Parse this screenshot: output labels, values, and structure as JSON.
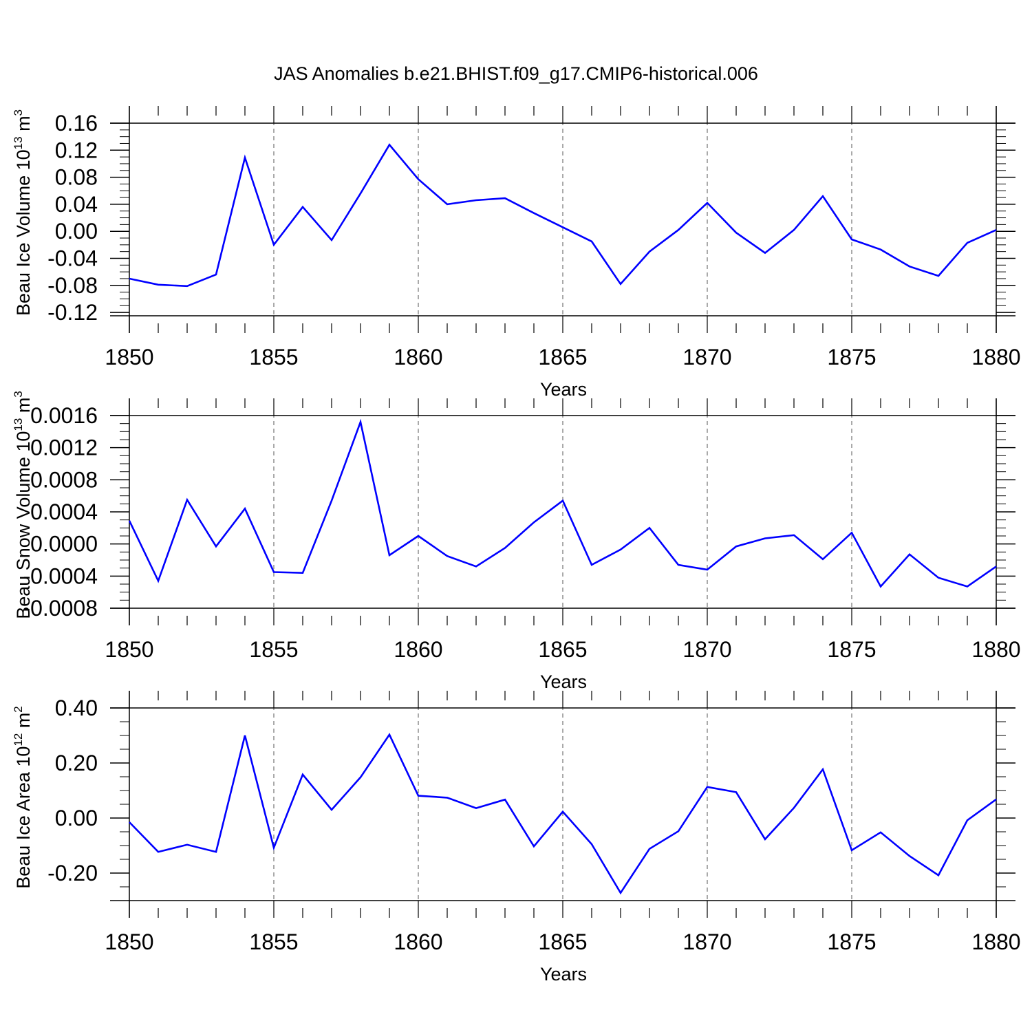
{
  "title": "JAS Anomalies b.e21.BHIST.f09_g17.CMIP6-historical.006",
  "chart_data": [
    {
      "type": "line",
      "ylabel": "Beau Ice Volume 10",
      "ylabel_sup": "13",
      "ylabel_unit": " m",
      "ylabel_unit_sup": "3",
      "xlabel": "Years",
      "xlim": [
        1850,
        1880
      ],
      "ylim": [
        -0.125,
        0.16
      ],
      "yticks": [
        -0.12,
        -0.08,
        -0.04,
        0.0,
        0.04,
        0.08,
        0.12,
        0.16
      ],
      "ytick_labels": [
        "-0.12",
        "-0.08",
        "-0.04",
        "0.00",
        "0.04",
        "0.08",
        "0.12",
        "0.16"
      ],
      "xticks": [
        1850,
        1855,
        1860,
        1865,
        1870,
        1875,
        1880
      ],
      "xtick_labels": [
        "1850",
        "1855",
        "1860",
        "1865",
        "1870",
        "1875",
        "1880"
      ],
      "x": [
        1850,
        1851,
        1852,
        1853,
        1854,
        1855,
        1856,
        1857,
        1858,
        1859,
        1860,
        1861,
        1862,
        1863,
        1864,
        1865,
        1866,
        1867,
        1868,
        1869,
        1870,
        1871,
        1872,
        1873,
        1874,
        1875,
        1876,
        1877,
        1878,
        1879,
        1880
      ],
      "series": [
        {
          "values": [
            -0.07,
            -0.079,
            -0.081,
            -0.064,
            0.109,
            -0.02,
            0.036,
            -0.013,
            0.056,
            0.128,
            0.077,
            0.04,
            0.046,
            0.049,
            0.027,
            0.006,
            -0.015,
            -0.078,
            -0.03,
            0.002,
            0.042,
            -0.002,
            -0.032,
            0.002,
            0.052,
            -0.012,
            -0.027,
            -0.052,
            -0.066,
            -0.017,
            0.002
          ]
        }
      ],
      "line_color": "#0000ff"
    },
    {
      "type": "line",
      "ylabel": "Beau Snow Volume 10",
      "ylabel_sup": "13",
      "ylabel_unit": " m",
      "ylabel_unit_sup": "3",
      "xlabel": "Years",
      "xlim": [
        1850,
        1880
      ],
      "ylim": [
        -0.0008,
        0.0016
      ],
      "yticks": [
        -0.0008,
        -0.0004,
        0.0,
        0.0004,
        0.0008,
        0.0012,
        0.0016
      ],
      "ytick_labels": [
        "-0.0008",
        "-0.0004",
        "0.0000",
        "0.0004",
        "0.0008",
        "0.0012",
        "0.0016"
      ],
      "xticks": [
        1850,
        1855,
        1860,
        1865,
        1870,
        1875,
        1880
      ],
      "xtick_labels": [
        "1850",
        "1855",
        "1860",
        "1865",
        "1870",
        "1875",
        "1880"
      ],
      "x": [
        1850,
        1851,
        1852,
        1853,
        1854,
        1855,
        1856,
        1857,
        1858,
        1859,
        1860,
        1861,
        1862,
        1863,
        1864,
        1865,
        1866,
        1867,
        1868,
        1869,
        1870,
        1871,
        1872,
        1873,
        1874,
        1875,
        1876,
        1877,
        1878,
        1879,
        1880
      ],
      "series": [
        {
          "values": [
            0.00029,
            -0.00046,
            0.00055,
            -3e-05,
            0.00044,
            -0.00035,
            -0.00036,
            0.00054,
            0.00152,
            -0.00014,
            0.0001,
            -0.00015,
            -0.00028,
            -5e-05,
            0.00027,
            0.00054,
            -0.00026,
            -7e-05,
            0.0002,
            -0.00026,
            -0.00032,
            -3e-05,
            7e-05,
            0.00011,
            -0.00019,
            0.00014,
            -0.00053,
            -0.00013,
            -0.00042,
            -0.00053,
            -0.00028
          ]
        }
      ],
      "line_color": "#0000ff"
    },
    {
      "type": "line",
      "ylabel": "Beau Ice Area 10",
      "ylabel_sup": "12",
      "ylabel_unit": " m",
      "ylabel_unit_sup": "2",
      "xlabel": "Years",
      "xlim": [
        1850,
        1880
      ],
      "ylim": [
        -0.3,
        0.4
      ],
      "yticks": [
        -0.2,
        0.0,
        0.2,
        0.4
      ],
      "ytick_labels": [
        "-0.20",
        "0.00",
        "0.20",
        "0.40"
      ],
      "xticks": [
        1850,
        1855,
        1860,
        1865,
        1870,
        1875,
        1880
      ],
      "xtick_labels": [
        "1850",
        "1855",
        "1860",
        "1865",
        "1870",
        "1875",
        "1880"
      ],
      "x": [
        1850,
        1851,
        1852,
        1853,
        1854,
        1855,
        1856,
        1857,
        1858,
        1859,
        1860,
        1861,
        1862,
        1863,
        1864,
        1865,
        1866,
        1867,
        1868,
        1869,
        1870,
        1871,
        1872,
        1873,
        1874,
        1875,
        1876,
        1877,
        1878,
        1879,
        1880
      ],
      "series": [
        {
          "values": [
            -0.015,
            -0.123,
            -0.097,
            -0.123,
            0.3,
            -0.108,
            0.158,
            0.03,
            0.148,
            0.303,
            0.081,
            0.074,
            0.036,
            0.067,
            -0.103,
            0.023,
            -0.095,
            -0.272,
            -0.112,
            -0.048,
            0.113,
            0.094,
            -0.077,
            0.037,
            0.177,
            -0.117,
            -0.052,
            -0.138,
            -0.208,
            -0.008,
            0.068
          ]
        }
      ],
      "line_color": "#0000ff"
    }
  ]
}
